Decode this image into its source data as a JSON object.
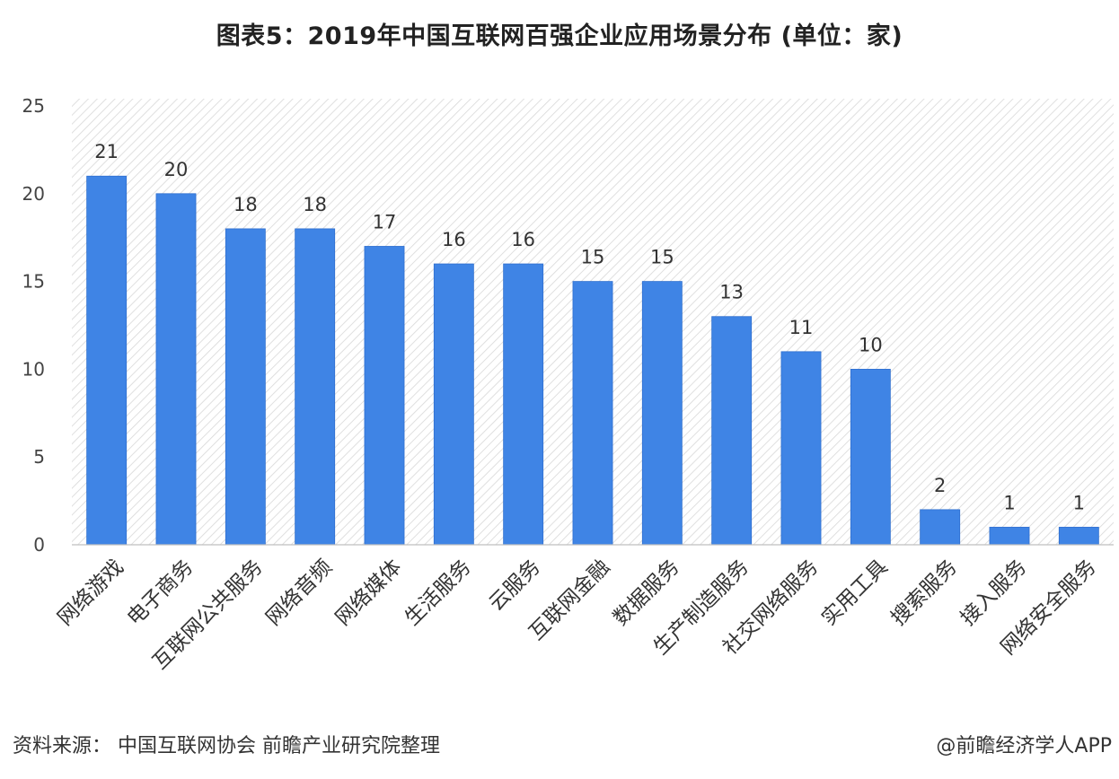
{
  "chart_data": {
    "type": "bar",
    "title": "图表5：2019年中国互联网百强企业应用场景分布 (单位：家)",
    "categories": [
      "网络游戏",
      "电子商务",
      "互联网公共服务",
      "网络音频",
      "网络媒体",
      "生活服务",
      "云服务",
      "互联网金融",
      "数据服务",
      "生产制造服务",
      "社交网络服务",
      "实用工具",
      "搜索服务",
      "接入服务",
      "网络安全服务"
    ],
    "values": [
      21,
      20,
      18,
      18,
      17,
      16,
      16,
      15,
      15,
      13,
      11,
      10,
      2,
      1,
      1
    ],
    "ylim": [
      0,
      25
    ],
    "yticks": [
      0,
      5,
      10,
      15,
      20,
      25
    ],
    "xlabel": "",
    "ylabel": "",
    "bar_color": "#3f84e5",
    "grid": false,
    "data_labels": true
  },
  "footer": {
    "source": "资料来源：  中国互联网协会 前瞻产业研究院整理",
    "credit": "@前瞻经济学人APP"
  }
}
